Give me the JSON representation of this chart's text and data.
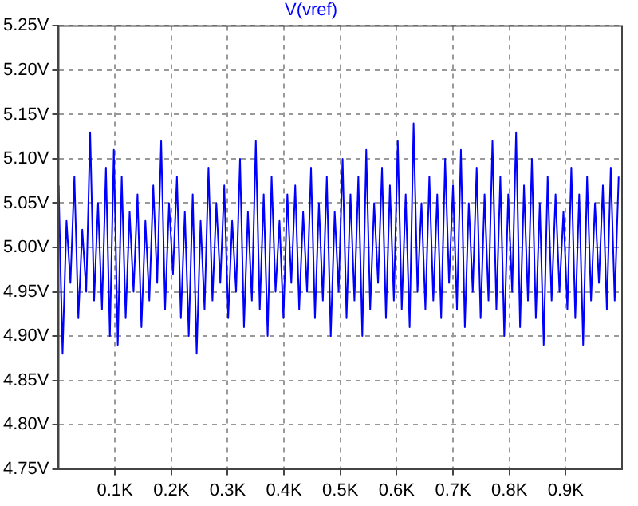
{
  "chart_data": {
    "type": "line",
    "title": "V(vref)",
    "x": [
      0,
      7,
      14,
      21,
      28,
      35,
      42,
      49,
      56,
      63,
      70,
      77,
      84,
      91,
      98,
      105,
      112,
      119,
      126,
      133,
      140,
      147,
      154,
      161,
      168,
      175,
      182,
      189,
      196,
      203,
      210,
      217,
      224,
      231,
      238,
      245,
      252,
      259,
      266,
      273,
      280,
      287,
      294,
      301,
      308,
      315,
      322,
      329,
      336,
      343,
      350,
      357,
      364,
      371,
      378,
      385,
      392,
      399,
      406,
      413,
      420,
      427,
      434,
      441,
      448,
      455,
      462,
      469,
      476,
      483,
      490,
      497,
      504,
      511,
      518,
      525,
      532,
      539,
      546,
      553,
      560,
      567,
      574,
      581,
      588,
      595,
      602,
      609,
      616,
      623,
      630,
      637,
      644,
      651,
      658,
      665,
      672,
      679,
      686,
      693,
      700,
      707,
      714,
      721,
      728,
      735,
      742,
      749,
      756,
      763,
      770,
      777,
      784,
      791,
      798,
      805,
      812,
      819,
      826,
      833,
      840,
      847,
      854,
      861,
      868,
      875,
      882,
      889,
      896,
      903,
      910,
      917,
      924,
      931,
      938,
      945,
      952,
      959,
      966,
      973,
      980,
      987,
      994
    ],
    "series": [
      {
        "color": "#0000ff",
        "values": [
          5.07,
          4.88,
          5.03,
          4.96,
          5.08,
          4.92,
          5.02,
          4.95,
          5.13,
          4.94,
          5.05,
          4.93,
          5.09,
          4.9,
          5.11,
          4.89,
          5.08,
          4.92,
          5.04,
          4.95,
          5.06,
          4.91,
          5.03,
          4.94,
          5.07,
          4.96,
          5.12,
          4.93,
          5.05,
          4.97,
          5.08,
          4.92,
          5.04,
          4.9,
          5.06,
          4.88,
          5.03,
          4.93,
          5.09,
          4.94,
          5.05,
          4.96,
          5.07,
          4.92,
          5.03,
          4.95,
          5.1,
          4.91,
          5.04,
          4.94,
          5.12,
          4.93,
          5.06,
          4.9,
          5.08,
          4.95,
          5.03,
          4.92,
          5.06,
          4.96,
          5.07,
          4.93,
          5.04,
          4.95,
          5.09,
          4.92,
          5.05,
          4.94,
          5.08,
          4.9,
          5.04,
          4.95,
          5.1,
          4.92,
          5.06,
          4.94,
          5.08,
          4.9,
          5.11,
          4.93,
          5.05,
          4.96,
          5.09,
          4.92,
          5.07,
          4.94,
          5.12,
          4.93,
          5.06,
          4.91,
          5.14,
          4.95,
          5.05,
          4.93,
          5.08,
          4.94,
          5.06,
          4.92,
          5.1,
          4.96,
          5.07,
          4.93,
          5.11,
          4.91,
          5.05,
          4.95,
          5.09,
          4.92,
          5.06,
          4.94,
          5.12,
          4.93,
          5.08,
          4.9,
          5.06,
          4.95,
          5.13,
          4.91,
          5.07,
          4.94,
          5.1,
          4.92,
          5.05,
          4.89,
          5.08,
          4.94,
          5.06,
          4.95,
          5.04,
          4.93,
          5.09,
          4.92,
          5.06,
          4.89,
          5.08,
          4.94,
          5.05,
          4.96,
          5.07,
          4.93,
          5.09,
          4.94,
          5.08
        ]
      }
    ],
    "xlim": [
      0,
      1000
    ],
    "xticks": [
      {
        "value": 100,
        "label": "0.1K"
      },
      {
        "value": 200,
        "label": "0.2K"
      },
      {
        "value": 300,
        "label": "0.3K"
      },
      {
        "value": 400,
        "label": "0.4K"
      },
      {
        "value": 500,
        "label": "0.5K"
      },
      {
        "value": 600,
        "label": "0.6K"
      },
      {
        "value": 700,
        "label": "0.7K"
      },
      {
        "value": 800,
        "label": "0.8K"
      },
      {
        "value": 900,
        "label": "0.9K"
      }
    ],
    "ylim": [
      4.75,
      5.25
    ],
    "yticks": [
      {
        "value": 4.75,
        "label": "4.75V"
      },
      {
        "value": 4.8,
        "label": "4.80V"
      },
      {
        "value": 4.85,
        "label": "4.85V"
      },
      {
        "value": 4.9,
        "label": "4.90V"
      },
      {
        "value": 4.95,
        "label": "4.95V"
      },
      {
        "value": 5.0,
        "label": "5.00V"
      },
      {
        "value": 5.05,
        "label": "5.05V"
      },
      {
        "value": 5.1,
        "label": "5.10V"
      },
      {
        "value": 5.15,
        "label": "5.15V"
      },
      {
        "value": 5.2,
        "label": "5.20V"
      },
      {
        "value": 5.25,
        "label": "5.25V"
      }
    ],
    "grid": true,
    "legend": false,
    "marker": "none",
    "line_style": "solid"
  }
}
